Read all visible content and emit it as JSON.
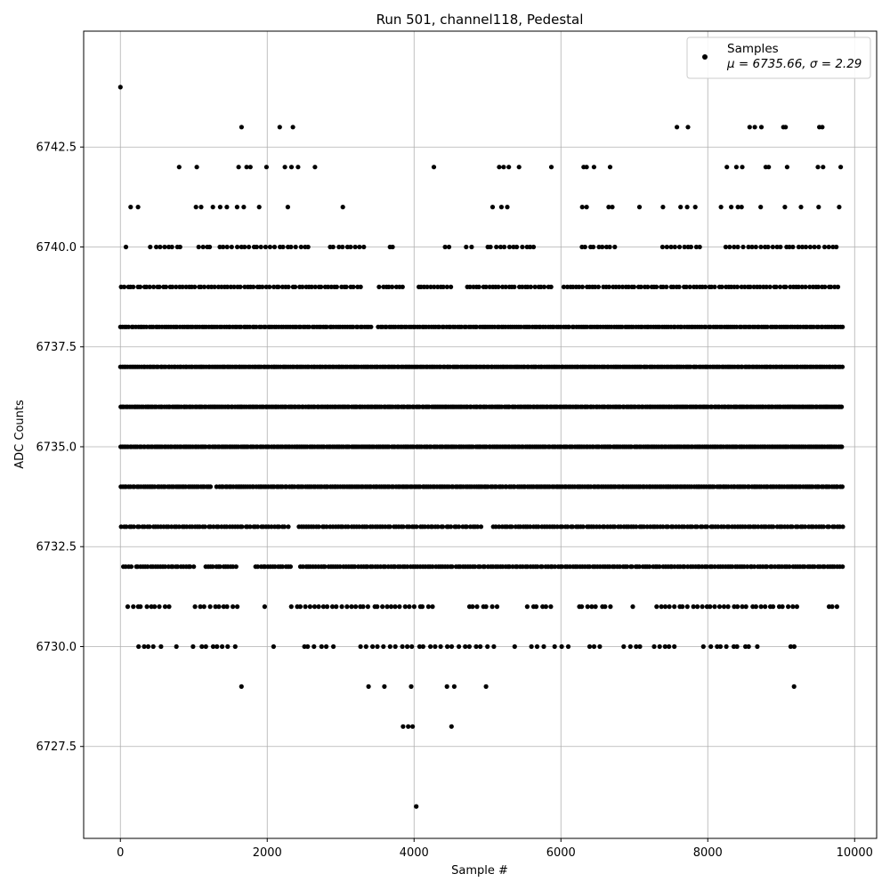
{
  "chart_data": {
    "type": "scatter",
    "title": "Run 501, channel118, Pedestal",
    "xlabel": "Sample #",
    "ylabel": "ADC Counts",
    "xlim": [
      -500,
      10300
    ],
    "ylim": [
      6725.2,
      6745.4
    ],
    "xticks": [
      0,
      2000,
      4000,
      6000,
      8000,
      10000
    ],
    "yticks": [
      6727.5,
      6730.0,
      6732.5,
      6735.0,
      6737.5,
      6740.0,
      6742.5
    ],
    "grid": true,
    "legend_position": "top-right",
    "series": [
      {
        "name": "Samples",
        "color": "#000000",
        "marker": "circle",
        "points": [
          [
            0,
            6744
          ],
          [
            1650,
            6743
          ],
          [
            2170,
            6743
          ],
          [
            2350,
            6743
          ],
          [
            7580,
            6743
          ],
          [
            7730,
            6743
          ],
          [
            8570,
            6743
          ],
          [
            8640,
            6743
          ],
          [
            8730,
            6743
          ],
          [
            9030,
            6743
          ],
          [
            9060,
            6743
          ],
          [
            9520,
            6743
          ],
          [
            9560,
            6743
          ],
          [
            800,
            6742
          ],
          [
            1040,
            6742
          ],
          [
            1610,
            6742
          ],
          [
            1720,
            6742
          ],
          [
            1770,
            6742
          ],
          [
            1990,
            6742
          ],
          [
            2240,
            6742
          ],
          [
            2330,
            6742
          ],
          [
            2420,
            6742
          ],
          [
            2650,
            6742
          ],
          [
            4270,
            6742
          ],
          [
            5160,
            6742
          ],
          [
            5220,
            6742
          ],
          [
            5290,
            6742
          ],
          [
            5430,
            6742
          ],
          [
            5870,
            6742
          ],
          [
            6310,
            6742
          ],
          [
            6350,
            6742
          ],
          [
            6450,
            6742
          ],
          [
            6670,
            6742
          ],
          [
            8260,
            6742
          ],
          [
            8390,
            6742
          ],
          [
            8470,
            6742
          ],
          [
            8790,
            6742
          ],
          [
            8830,
            6742
          ],
          [
            9080,
            6742
          ],
          [
            9500,
            6742
          ],
          [
            9570,
            6742
          ],
          [
            9810,
            6742
          ],
          [
            140,
            6741
          ],
          [
            240,
            6741
          ],
          [
            1030,
            6741
          ],
          [
            1100,
            6741
          ],
          [
            1260,
            6741
          ],
          [
            1360,
            6741
          ],
          [
            1450,
            6741
          ],
          [
            1590,
            6741
          ],
          [
            1680,
            6741
          ],
          [
            1890,
            6741
          ],
          [
            2280,
            6741
          ],
          [
            3030,
            6741
          ],
          [
            5070,
            6741
          ],
          [
            5190,
            6741
          ],
          [
            5270,
            6741
          ],
          [
            6290,
            6741
          ],
          [
            6350,
            6741
          ],
          [
            6650,
            6741
          ],
          [
            6700,
            6741
          ],
          [
            7070,
            6741
          ],
          [
            7390,
            6741
          ],
          [
            7630,
            6741
          ],
          [
            7720,
            6741
          ],
          [
            7830,
            6741
          ],
          [
            8180,
            6741
          ],
          [
            8320,
            6741
          ],
          [
            8410,
            6741
          ],
          [
            8460,
            6741
          ],
          [
            8720,
            6741
          ],
          [
            9050,
            6741
          ],
          [
            9270,
            6741
          ],
          [
            9510,
            6741
          ],
          [
            9790,
            6741
          ],
          [
            3850,
            6728
          ],
          [
            3920,
            6728
          ],
          [
            3980,
            6728
          ],
          [
            4510,
            6728
          ],
          [
            4030,
            6726
          ]
        ],
        "dense_rows": [
          {
            "y": 6740,
            "x_start": 70,
            "x_end": 9810,
            "step": 58,
            "gaps": [
              [
                120,
                380
              ],
              [
                820,
                1000
              ],
              [
                1230,
                1350
              ],
              [
                2600,
                2800
              ],
              [
                3350,
                3600
              ],
              [
                3750,
                4420
              ],
              [
                4500,
                4700
              ],
              [
                4800,
                5000
              ],
              [
                5650,
                6250
              ],
              [
                6800,
                7350
              ],
              [
                7900,
                8200
              ]
            ]
          },
          {
            "y": 6739,
            "x_start": 10,
            "x_end": 9810,
            "step": 44,
            "gaps": [
              [
                3320,
                3480
              ],
              [
                3880,
                4050
              ],
              [
                4530,
                4680
              ],
              [
                5900,
                6020
              ]
            ]
          },
          {
            "y": 6738,
            "x_start": 0,
            "x_end": 9840,
            "step": 30,
            "gaps": [
              [
                3420,
                3490
              ]
            ]
          },
          {
            "y": 6737,
            "x_start": 0,
            "x_end": 9840,
            "step": 26,
            "gaps": []
          },
          {
            "y": 6736,
            "x_start": 0,
            "x_end": 9840,
            "step": 26,
            "gaps": []
          },
          {
            "y": 6735,
            "x_start": 0,
            "x_end": 9840,
            "step": 26,
            "gaps": []
          },
          {
            "y": 6734,
            "x_start": 0,
            "x_end": 9840,
            "step": 28,
            "gaps": [
              [
                1250,
                1310
              ]
            ]
          },
          {
            "y": 6733,
            "x_start": 10,
            "x_end": 9840,
            "step": 36,
            "gaps": [
              [
                2300,
                2430
              ],
              [
                4930,
                5050
              ]
            ]
          },
          {
            "y": 6732,
            "x_start": 40,
            "x_end": 9840,
            "step": 34,
            "gaps": [
              [
                160,
                200
              ],
              [
                1000,
                1130
              ],
              [
                1600,
                1820
              ],
              [
                2340,
                2450
              ]
            ]
          },
          {
            "y": 6731,
            "x_start": 100,
            "x_end": 9820,
            "step": 62,
            "gaps": [
              [
                680,
                1000
              ],
              [
                1620,
                1920
              ],
              [
                1970,
                2280
              ],
              [
                4300,
                4700
              ],
              [
                5150,
                5500
              ],
              [
                5900,
                6250
              ],
              [
                6750,
                6950
              ],
              [
                7050,
                7250
              ],
              [
                9230,
                9640
              ]
            ]
          },
          {
            "y": 6730,
            "x_start": 230,
            "x_end": 9640,
            "step": 78,
            "gaps": [
              [
                560,
                720
              ],
              [
                800,
                960
              ],
              [
                1600,
                2060
              ],
              [
                2130,
                2440
              ],
              [
                2950,
                3260
              ],
              [
                5100,
                5300
              ],
              [
                5400,
                5550
              ],
              [
                5800,
                5900
              ],
              [
                6100,
                6380
              ],
              [
                6600,
                6800
              ],
              [
                7100,
                7250
              ],
              [
                7600,
                7900
              ],
              [
                8700,
                8760
              ],
              [
                8800,
                9050
              ],
              [
                9200,
                9600
              ]
            ]
          },
          {
            "y": 6729,
            "x_start": 1600,
            "x_end": 9200,
            "step": 200,
            "gaps": [
              [
                1650,
                2480
              ],
              [
                2550,
                3180
              ],
              [
                3600,
                3840
              ],
              [
                4000,
                4270
              ],
              [
                4780,
                4920
              ],
              [
                4980,
                5880
              ],
              [
                5930,
                6200
              ],
              [
                6250,
                7450
              ],
              [
                7500,
                9150
              ]
            ]
          }
        ]
      }
    ],
    "legend": {
      "label": "Samples",
      "stats": "μ = 6735.66, σ = 2.29"
    }
  }
}
